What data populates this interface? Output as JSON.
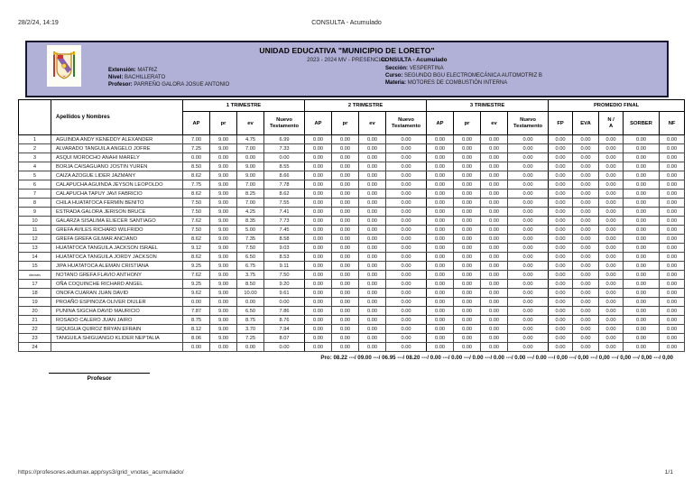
{
  "print": {
    "datetime": "28/2/24, 14:19",
    "title": "CONSULTA - Acumulado"
  },
  "banner": {
    "bg_color": "#b1b1d8",
    "school": "UNIDAD EDUCATIVA \"MUNICIPIO DE LORETO\"",
    "period": "2023 - 2024 MV - PRESENCIAL",
    "logo": "school-crest",
    "left_info": [
      {
        "label": "Extensión:",
        "value": "MATRIZ"
      },
      {
        "label": "Nivel:",
        "value": "BACHILLERATO"
      },
      {
        "label": "Profesor:",
        "value": "PARREÑO GALORA JOSUE ANTONIO"
      }
    ],
    "consulta_title": "CONSULTA - Acumulado",
    "right_info": [
      {
        "label": "Sección:",
        "value": "VESPERTINA"
      },
      {
        "label": "Curso:",
        "value": "SEGUNDO BGU ELECTROMECÁNICA AUTOMOTRIZ B"
      },
      {
        "label": "Materia:",
        "value": "MOTORES DE COMBUSTIÓN INTERNA"
      }
    ]
  },
  "table": {
    "name_header": "Apellidos y Nombres",
    "group_headers": [
      "1 TRIMESTRE",
      "2 TRIMESTRE",
      "3 TRIMESTRE",
      "PROMEDIO FINAL"
    ],
    "trimester_cols": {
      "ap": "AP",
      "pr": "pr",
      "ev": "ev",
      "nt": "Nuevo\nTestamento"
    },
    "final_cols": {
      "fp": "FP",
      "eva": "EVA",
      "na": "N /\nA",
      "sorber": "SORBER",
      "nf": "NF"
    },
    "rows": [
      {
        "n": "1",
        "name": "AGUINDA ANDY KENEDDY ALEXANDER",
        "v": [
          "7.00",
          "9.00",
          "4.75",
          "6.99",
          "0.00",
          "0.00",
          "0.00",
          "0.00",
          "0.00",
          "0.00",
          "0.00",
          "0.00",
          "0.00",
          "0.00",
          "0.00",
          "0.00",
          "0.00"
        ]
      },
      {
        "n": "2",
        "name": "ALVARADO TANGUILA ANGELO JOFRE",
        "v": [
          "7.25",
          "9.00",
          "7.00",
          "7.33",
          "0.00",
          "0.00",
          "0.00",
          "0.00",
          "0.00",
          "0.00",
          "0.00",
          "0.00",
          "0.00",
          "0.00",
          "0.00",
          "0.00",
          "0.00"
        ]
      },
      {
        "n": "3",
        "name": "ASQUI MOROCHO ANAHI MARELY",
        "v": [
          "0.00",
          "0.00",
          "0.00",
          "0.00",
          "0.00",
          "0.00",
          "0.00",
          "0.00",
          "0.00",
          "0.00",
          "0.00",
          "0.00",
          "0.00",
          "0.00",
          "0.00",
          "0.00",
          "0.00"
        ]
      },
      {
        "n": "4",
        "name": "BORJA CAISAGUANO JOSTIN YUREN",
        "v": [
          "8.50",
          "9.00",
          "9.00",
          "8.55",
          "0.00",
          "0.00",
          "0.00",
          "0.00",
          "0.00",
          "0.00",
          "0.00",
          "0.00",
          "0.00",
          "0.00",
          "0.00",
          "0.00",
          "0.00"
        ]
      },
      {
        "n": "5",
        "name": "CAIZA AZOGUE LIDER JAZMANY",
        "v": [
          "8.62",
          "9.00",
          "9.00",
          "8.66",
          "0.00",
          "0.00",
          "0.00",
          "0.00",
          "0.00",
          "0.00",
          "0.00",
          "0.00",
          "0.00",
          "0.00",
          "0.00",
          "0.00",
          "0.00"
        ]
      },
      {
        "n": "6",
        "name": "CALAPUCHA AGUINDA JEYSON LEOPOLDO",
        "v": [
          "7.75",
          "9.00",
          "7.00",
          "7.78",
          "0.00",
          "0.00",
          "0.00",
          "0.00",
          "0.00",
          "0.00",
          "0.00",
          "0.00",
          "0.00",
          "0.00",
          "0.00",
          "0.00",
          "0.00"
        ]
      },
      {
        "n": "7",
        "name": "CALAPUCHA TAPUY JAVI FABRICIO",
        "v": [
          "8.62",
          "9.00",
          "8.25",
          "8.62",
          "0.00",
          "0.00",
          "0.00",
          "0.00",
          "0.00",
          "0.00",
          "0.00",
          "0.00",
          "0.00",
          "0.00",
          "0.00",
          "0.00",
          "0.00"
        ]
      },
      {
        "n": "8",
        "name": "CHILA HUATATOCA FERMÍN BENITO",
        "v": [
          "7.50",
          "9.00",
          "7.00",
          "7.55",
          "0.00",
          "0.00",
          "0.00",
          "0.00",
          "0.00",
          "0.00",
          "0.00",
          "0.00",
          "0.00",
          "0.00",
          "0.00",
          "0.00",
          "0.00"
        ]
      },
      {
        "n": "9",
        "name": "ESTRADA GALORA JERISON BRUCE",
        "v": [
          "7.50",
          "9.00",
          "4.25",
          "7.41",
          "0.00",
          "0.00",
          "0.00",
          "0.00",
          "0.00",
          "0.00",
          "0.00",
          "0.00",
          "0.00",
          "0.00",
          "0.00",
          "0.00",
          "0.00"
        ]
      },
      {
        "n": "10",
        "name": "GALARZA SISALIMA ELIECER SANTIAGO",
        "v": [
          "7.62",
          "9.00",
          "8.35",
          "7.73",
          "0.00",
          "0.00",
          "0.00",
          "0.00",
          "0.00",
          "0.00",
          "0.00",
          "0.00",
          "0.00",
          "0.00",
          "0.00",
          "0.00",
          "0.00"
        ]
      },
      {
        "n": "11",
        "name": "GREFA AVILES RICHARD WILFRIDO",
        "v": [
          "7.50",
          "9.00",
          "5.00",
          "7.45",
          "0.00",
          "0.00",
          "0.00",
          "0.00",
          "0.00",
          "0.00",
          "0.00",
          "0.00",
          "0.00",
          "0.00",
          "0.00",
          "0.00",
          "0.00"
        ]
      },
      {
        "n": "12",
        "name": "GREFA GREFA GILMAR ANCIANO",
        "v": [
          "8.62",
          "9.00",
          "7.35",
          "8.58",
          "0.00",
          "0.00",
          "0.00",
          "0.00",
          "0.00",
          "0.00",
          "0.00",
          "0.00",
          "0.00",
          "0.00",
          "0.00",
          "0.00",
          "0.00"
        ]
      },
      {
        "n": "13",
        "name": "HUATATOCA TANGUILA JACKSON ISRAEL",
        "v": [
          "9.12",
          "9.00",
          "7.50",
          "9.03",
          "0.00",
          "0.00",
          "0.00",
          "0.00",
          "0.00",
          "0.00",
          "0.00",
          "0.00",
          "0.00",
          "0.00",
          "0.00",
          "0.00",
          "0.00"
        ]
      },
      {
        "n": "14",
        "name": "HUATATOCA TANGUILA JORDY JACKSON",
        "v": [
          "8.62",
          "9.00",
          "6.50",
          "8.53",
          "0.00",
          "0.00",
          "0.00",
          "0.00",
          "0.00",
          "0.00",
          "0.00",
          "0.00",
          "0.00",
          "0.00",
          "0.00",
          "0.00",
          "0.00"
        ]
      },
      {
        "n": "15",
        "name": "JIPA HUATATOCA ALEMÁN CRISTIANA",
        "v": [
          "9.25",
          "9.00",
          "6.75",
          "9.11",
          "0.00",
          "0.00",
          "0.00",
          "0.00",
          "0.00",
          "0.00",
          "0.00",
          "0.00",
          "0.00",
          "0.00",
          "0.00",
          "0.00",
          "0.00"
        ]
      },
      {
        "n": "dieciséis",
        "name": "NOTANO GREFA FLAVIO ANTHONY",
        "v": [
          "7.62",
          "9.00",
          "3.75",
          "7.50",
          "0.00",
          "0.00",
          "0.00",
          "0.00",
          "0.00",
          "0.00",
          "0.00",
          "0.00",
          "0.00",
          "0.00",
          "0.00",
          "0.00",
          "0.00"
        ]
      },
      {
        "n": "17",
        "name": "OÑA COQUINCHE RICHARD ANGEL",
        "v": [
          "9.25",
          "9.00",
          "8.50",
          "9.20",
          "0.00",
          "0.00",
          "0.00",
          "0.00",
          "0.00",
          "0.00",
          "0.00",
          "0.00",
          "0.00",
          "0.00",
          "0.00",
          "0.00",
          "0.00"
        ]
      },
      {
        "n": "18",
        "name": "ONOFA CUARAN JUAN DAVID",
        "v": [
          "9.62",
          "9.00",
          "10.00",
          "9.61",
          "0.00",
          "0.00",
          "0.00",
          "0.00",
          "0.00",
          "0.00",
          "0.00",
          "0.00",
          "0.00",
          "0.00",
          "0.00",
          "0.00",
          "0.00"
        ]
      },
      {
        "n": "19",
        "name": "PROAÑO ESPINOZA OLIVER DIULER",
        "v": [
          "0.00",
          "0.00",
          "0.00",
          "0.00",
          "0.00",
          "0.00",
          "0.00",
          "0.00",
          "0.00",
          "0.00",
          "0.00",
          "0.00",
          "0.00",
          "0.00",
          "0.00",
          "0.00",
          "0.00"
        ]
      },
      {
        "n": "20",
        "name": "PUNINA SIGCHA DAVID MAURICIO",
        "v": [
          "7.87",
          "9.00",
          "6.50",
          "7.86",
          "0.00",
          "0.00",
          "0.00",
          "0.00",
          "0.00",
          "0.00",
          "0.00",
          "0.00",
          "0.00",
          "0.00",
          "0.00",
          "0.00",
          "0.00"
        ]
      },
      {
        "n": "21",
        "name": "ROSADO CALERO JUAN JAIRO",
        "v": [
          "8.75",
          "9.00",
          "8.75",
          "8.76",
          "0.00",
          "0.00",
          "0.00",
          "0.00",
          "0.00",
          "0.00",
          "0.00",
          "0.00",
          "0.00",
          "0.00",
          "0.00",
          "0.00",
          "0.00"
        ]
      },
      {
        "n": "22",
        "name": "SIQUIGUA QUIROZ BRYAN EFRAIN",
        "v": [
          "8.12",
          "9.00",
          "3.70",
          "7.94",
          "0.00",
          "0.00",
          "0.00",
          "0.00",
          "0.00",
          "0.00",
          "0.00",
          "0.00",
          "0.00",
          "0.00",
          "0.00",
          "0.00",
          "0.00"
        ]
      },
      {
        "n": "23",
        "name": "TANGUILA SHIGUANGO KLIDER NEPTALIA",
        "v": [
          "8.06",
          "9.00",
          "7.25",
          "8.07",
          "0.00",
          "0.00",
          "0.00",
          "0.00",
          "0.00",
          "0.00",
          "0.00",
          "0.00",
          "0.00",
          "0.00",
          "0.00",
          "0.00",
          "0.00"
        ]
      },
      {
        "n": "24",
        "name": "",
        "v": [
          "0.00",
          "0.00",
          "0.00",
          "0.00",
          "0.00",
          "0.00",
          "0.00",
          "0.00",
          "0.00",
          "0.00",
          "0.00",
          "0.00",
          "0.00",
          "0.00",
          "0.00",
          "0.00",
          "0.00"
        ]
      }
    ]
  },
  "summary": {
    "pro_line": "Pro: 08.22 ---/ 09.00 ---/ 06.95 ---/ 08.20 ---/ 0.00 ---/ 0.00 ---/ 0.00 ---/ 0.00 ---/ 0.00 ---/ 0.00 ---/ 0,00 ---/ 0,00 ---/ 0,00 ---/ 0,00 ---/ 0,00 ---/ 0,00",
    "signature_label": "Profesor"
  },
  "footer": {
    "url": "https://profesores.edumax.app/sys3/grid_vnotas_acumulado/",
    "page": "1/1"
  }
}
